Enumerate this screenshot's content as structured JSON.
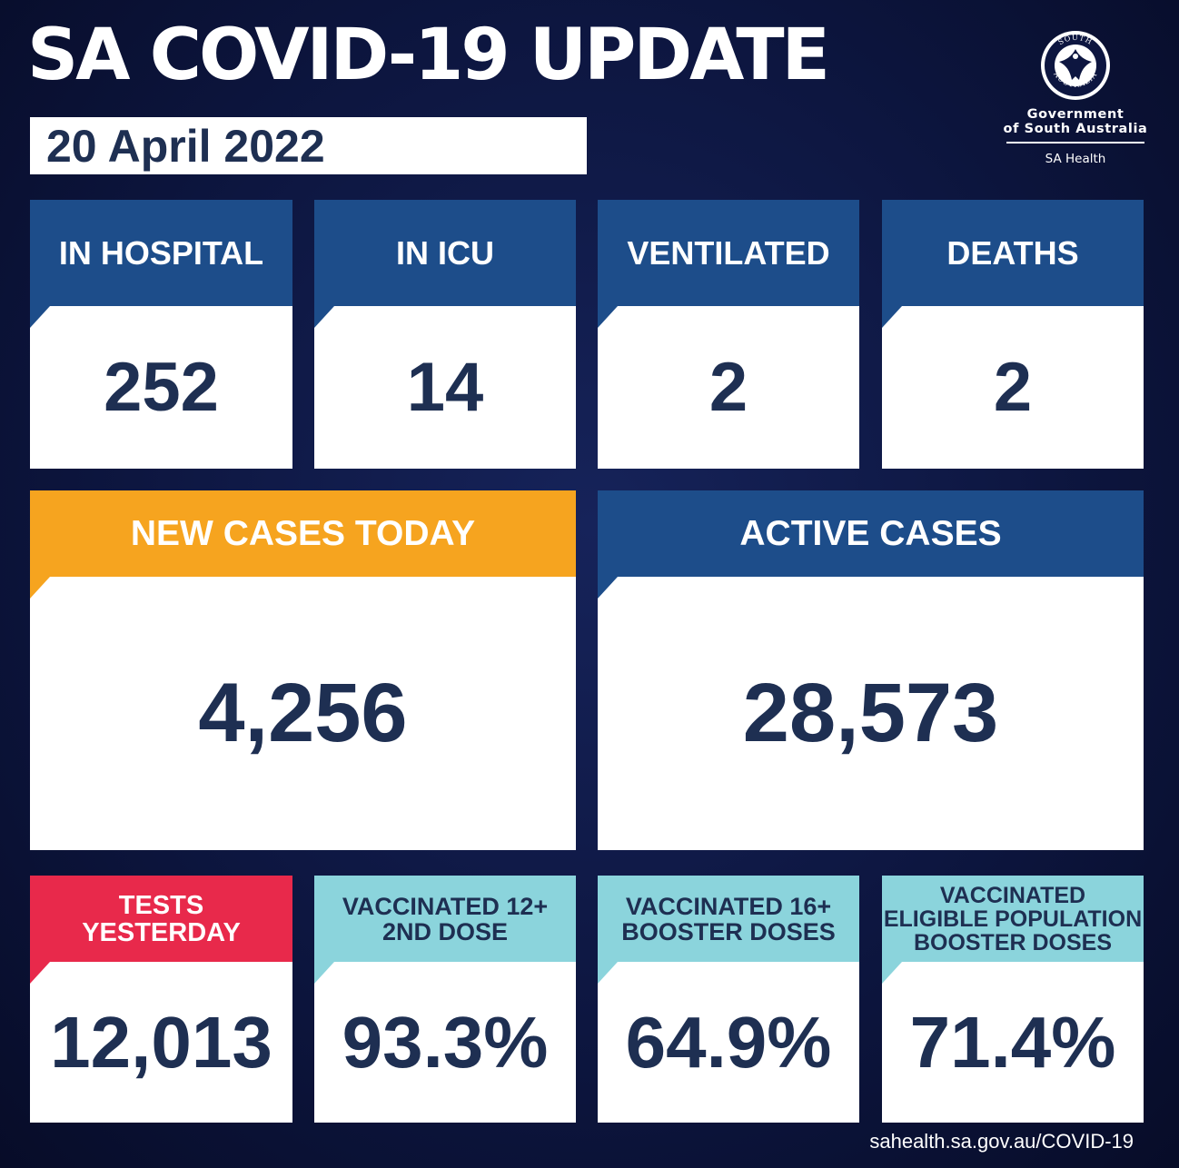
{
  "header": {
    "title": "SA COVID-19 UPDATE",
    "date": "20 April 2022"
  },
  "logo": {
    "seal_text": "SOUTH AUSTRALIA",
    "line1": "Government",
    "line2": "of South Australia",
    "department": "SA Health"
  },
  "stats": {
    "hospital": {
      "label": "IN HOSPITAL",
      "value": "252"
    },
    "icu": {
      "label": "IN ICU",
      "value": "14"
    },
    "ventilated": {
      "label": "VENTILATED",
      "value": "2"
    },
    "deaths": {
      "label": "DEATHS",
      "value": "2"
    },
    "new_cases": {
      "label": "NEW CASES TODAY",
      "value": "4,256"
    },
    "active_cases": {
      "label": "ACTIVE CASES",
      "value": "28,573"
    },
    "tests": {
      "label_line1": "TESTS",
      "label_line2": "YESTERDAY",
      "value": "12,013"
    },
    "vacc12": {
      "label_line1": "VACCINATED 12+",
      "label_line2": "2ND DOSE",
      "value": "93.3%"
    },
    "vacc16": {
      "label_line1": "VACCINATED 16+",
      "label_line2": "BOOSTER DOSES",
      "value": "64.9%"
    },
    "vacc_eligible": {
      "label_line1": "VACCINATED",
      "label_line2": "ELIGIBLE POPULATION",
      "label_line3": "BOOSTER DOSES",
      "value": "71.4%"
    }
  },
  "colors": {
    "background": "#0d1640",
    "blue_header": "#1d4d8a",
    "orange_header": "#f6a41f",
    "red_header": "#e8294b",
    "teal_header": "#8bd4dc",
    "number_text": "#1e2f52"
  },
  "footer": {
    "url": "sahealth.sa.gov.au/COVID-19"
  }
}
